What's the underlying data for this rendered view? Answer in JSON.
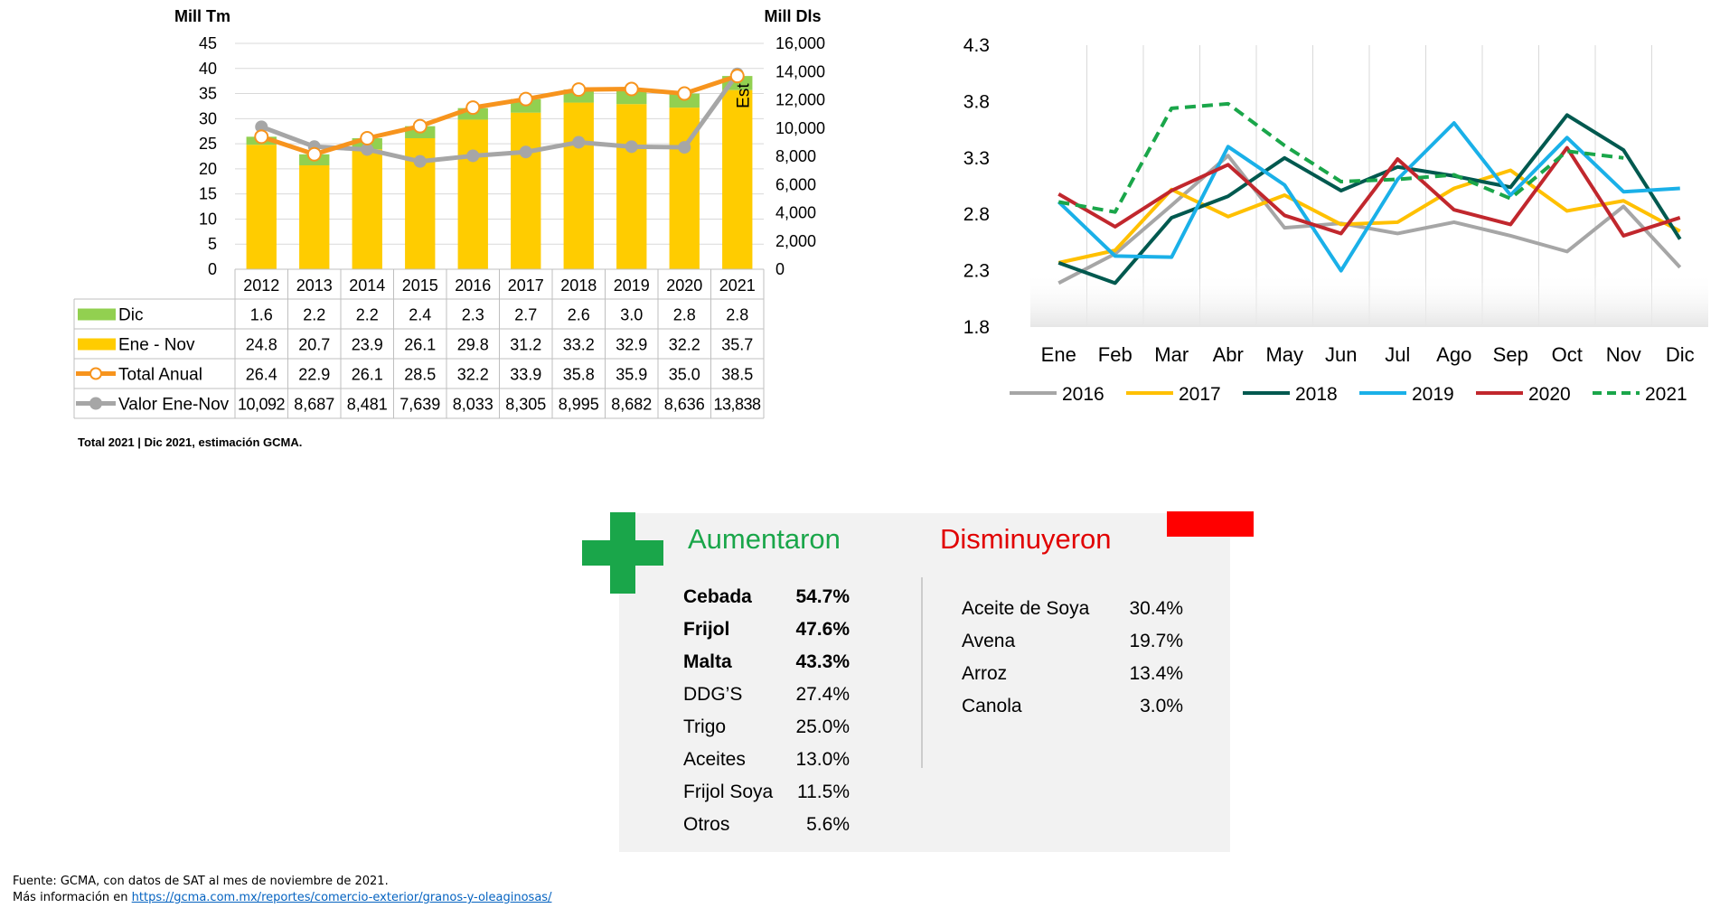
{
  "chart_data": [
    {
      "type": "bar",
      "stacked": true,
      "left_axis_label": "Mill Tm",
      "right_axis_label": "Mill Dls",
      "left_ticks": [
        "45",
        "40",
        "35",
        "30",
        "25",
        "20",
        "15",
        "10",
        "5",
        "0"
      ],
      "right_ticks": [
        "16,000",
        "14,000",
        "12,000",
        "10,000",
        "8,000",
        "6,000",
        "4,000",
        "2,000",
        "0"
      ],
      "ylim_left": [
        0,
        45
      ],
      "ylim_right": [
        0,
        16000
      ],
      "categories": [
        "2012",
        "2013",
        "2014",
        "2015",
        "2016",
        "2017",
        "2018",
        "2019",
        "2020",
        "2021"
      ],
      "series": [
        {
          "name": "Dic",
          "color": "#92d050",
          "axis": "left",
          "kind": "bar",
          "values": [
            1.6,
            2.2,
            2.2,
            2.4,
            2.3,
            2.7,
            2.6,
            3.0,
            2.8,
            2.8
          ],
          "labels": [
            "1.6",
            "2.2",
            "2.2",
            "2.4",
            "2.3",
            "2.7",
            "2.6",
            "3.0",
            "2.8",
            "2.8"
          ]
        },
        {
          "name": "Ene - Nov",
          "color": "#ffcc00",
          "axis": "left",
          "kind": "bar",
          "values": [
            24.8,
            20.7,
            23.9,
            26.1,
            29.8,
            31.2,
            33.2,
            32.9,
            32.2,
            35.7
          ],
          "labels": [
            "24.8",
            "20.7",
            "23.9",
            "26.1",
            "29.8",
            "31.2",
            "33.2",
            "32.9",
            "32.2",
            "35.7"
          ]
        },
        {
          "name": "Total Anual",
          "color": "#f7941d",
          "axis": "left",
          "kind": "line",
          "values": [
            26.4,
            22.9,
            26.1,
            28.5,
            32.2,
            33.9,
            35.8,
            35.9,
            35.0,
            38.5
          ],
          "labels": [
            "26.4",
            "22.9",
            "26.1",
            "28.5",
            "32.2",
            "33.9",
            "35.8",
            "35.9",
            "35.0",
            "38.5"
          ]
        },
        {
          "name": "Valor Ene-Nov",
          "color": "#a6a6a6",
          "axis": "right",
          "kind": "line",
          "values": [
            10092,
            8687,
            8481,
            7639,
            8033,
            8305,
            8995,
            8682,
            8636,
            13838
          ],
          "labels": [
            "10,092",
            "8,687",
            "8,481",
            "7,639",
            "8,033",
            "8,305",
            "8,995",
            "8,682",
            "8,636",
            "13,838"
          ]
        }
      ],
      "annotation": "Est",
      "note": "Total 2021 | Dic 2021, estimación GCMA."
    },
    {
      "type": "line",
      "ylim": [
        1.8,
        4.3
      ],
      "y_ticks": [
        "4.3",
        "3.8",
        "3.3",
        "2.8",
        "2.3",
        "1.8"
      ],
      "categories": [
        "Ene",
        "Feb",
        "Mar",
        "Abr",
        "May",
        "Jun",
        "Jul",
        "Ago",
        "Sep",
        "Oct",
        "Nov",
        "Dic"
      ],
      "series": [
        {
          "name": "2016",
          "color": "#a6a6a6",
          "dashed": false,
          "values": [
            2.19,
            2.45,
            2.88,
            3.32,
            2.68,
            2.72,
            2.63,
            2.73,
            2.61,
            2.47,
            2.87,
            2.33
          ]
        },
        {
          "name": "2017",
          "color": "#ffc000",
          "dashed": false,
          "values": [
            2.37,
            2.48,
            3.02,
            2.78,
            2.97,
            2.71,
            2.73,
            3.03,
            3.19,
            2.83,
            2.92,
            2.65
          ]
        },
        {
          "name": "2018",
          "color": "#00594f",
          "dashed": false,
          "values": [
            2.37,
            2.19,
            2.77,
            2.96,
            3.3,
            3.01,
            3.22,
            3.14,
            3.04,
            3.68,
            3.37,
            2.58
          ]
        },
        {
          "name": "2019",
          "color": "#1ab0e8",
          "dashed": false,
          "values": [
            2.91,
            2.43,
            2.42,
            3.4,
            3.06,
            2.3,
            3.11,
            3.61,
            2.97,
            3.48,
            3.0,
            3.03
          ]
        },
        {
          "name": "2020",
          "color": "#c1272d",
          "dashed": false,
          "values": [
            2.98,
            2.69,
            3.01,
            3.24,
            2.79,
            2.63,
            3.29,
            2.84,
            2.71,
            3.39,
            2.61,
            2.77
          ]
        },
        {
          "name": "2021",
          "color": "#1aa64a",
          "dashed": true,
          "values": [
            2.91,
            2.82,
            3.74,
            3.78,
            3.41,
            3.09,
            3.11,
            3.15,
            2.94,
            3.36,
            3.3,
            null
          ]
        }
      ]
    }
  ],
  "changes": {
    "up_title": "Aumentaron",
    "down_title": "Disminuyeron",
    "up_color": "#1aa64a",
    "down_color": "#ff0000",
    "up_items": [
      {
        "name": "Cebada",
        "pct": "54.7%",
        "bold": true
      },
      {
        "name": "Frijol",
        "pct": "47.6%",
        "bold": true
      },
      {
        "name": "Malta",
        "pct": "43.3%",
        "bold": true
      },
      {
        "name": "DDG’S",
        "pct": "27.4%",
        "bold": false
      },
      {
        "name": "Trigo",
        "pct": "25.0%",
        "bold": false
      },
      {
        "name": "Aceites",
        "pct": "13.0%",
        "bold": false
      },
      {
        "name": "Frijol Soya",
        "pct": "11.5%",
        "bold": false
      },
      {
        "name": "Otros",
        "pct": "5.6%",
        "bold": false
      }
    ],
    "down_items": [
      {
        "name": "Aceite de Soya",
        "pct": "30.4%"
      },
      {
        "name": "Avena",
        "pct": "19.7%"
      },
      {
        "name": "Arroz",
        "pct": "13.4%"
      },
      {
        "name": "Canola",
        "pct": "3.0%"
      }
    ]
  },
  "footer": {
    "source": "Fuente: GCMA, con datos de SAT al mes de noviembre de 2021.",
    "more_prefix": "Más información en ",
    "more_link": "https://gcma.com.mx/reportes/comercio-exterior/granos-y-oleaginosas/"
  }
}
